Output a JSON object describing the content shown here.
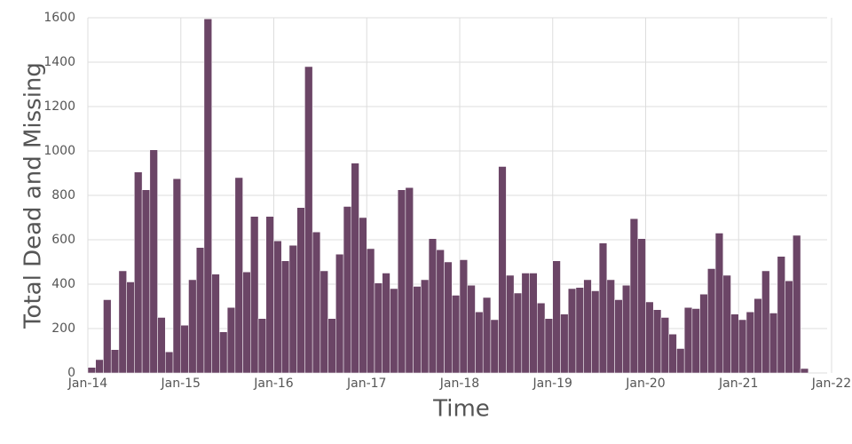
{
  "chart_data": {
    "type": "bar",
    "x_label": "Time",
    "y_label": "Total Dead and Missing",
    "color": "#6b4566",
    "grid": true,
    "x": [
      "2014-01",
      "2014-02",
      "2014-03",
      "2014-04",
      "2014-05",
      "2014-06",
      "2014-07",
      "2014-08",
      "2014-09",
      "2014-10",
      "2014-11",
      "2014-12",
      "2015-01",
      "2015-02",
      "2015-03",
      "2015-04",
      "2015-05",
      "2015-06",
      "2015-07",
      "2015-08",
      "2015-09",
      "2015-10",
      "2015-11",
      "2015-12",
      "2016-01",
      "2016-02",
      "2016-03",
      "2016-04",
      "2016-05",
      "2016-06",
      "2016-07",
      "2016-08",
      "2016-09",
      "2016-10",
      "2016-11",
      "2016-12",
      "2017-01",
      "2017-02",
      "2017-03",
      "2017-04",
      "2017-05",
      "2017-06",
      "2017-07",
      "2017-08",
      "2017-09",
      "2017-10",
      "2017-11",
      "2017-12",
      "2018-01",
      "2018-02",
      "2018-03",
      "2018-04",
      "2018-05",
      "2018-06",
      "2018-07",
      "2018-08",
      "2018-09",
      "2018-10",
      "2018-11",
      "2018-12",
      "2019-01",
      "2019-02",
      "2019-03",
      "2019-04",
      "2019-05",
      "2019-06",
      "2019-07",
      "2019-08",
      "2019-09",
      "2019-10",
      "2019-11",
      "2019-12",
      "2020-01",
      "2020-02",
      "2020-03",
      "2020-04",
      "2020-05",
      "2020-06",
      "2020-07",
      "2020-08",
      "2020-09",
      "2020-10",
      "2020-11",
      "2020-12",
      "2021-01",
      "2021-02",
      "2021-03",
      "2021-04",
      "2021-05",
      "2021-06",
      "2021-07",
      "2021-08",
      "2021-09"
    ],
    "values": [
      25,
      60,
      330,
      105,
      460,
      410,
      905,
      825,
      1005,
      250,
      95,
      875,
      215,
      420,
      565,
      1595,
      445,
      185,
      295,
      880,
      455,
      705,
      245,
      705,
      595,
      505,
      575,
      745,
      1380,
      635,
      460,
      245,
      535,
      750,
      945,
      700,
      560,
      405,
      450,
      380,
      825,
      835,
      390,
      420,
      605,
      555,
      500,
      350,
      510,
      395,
      275,
      340,
      240,
      930,
      440,
      360,
      450,
      450,
      315,
      245,
      505,
      265,
      380,
      385,
      420,
      370,
      585,
      420,
      330,
      395,
      695,
      605,
      320,
      285,
      250,
      175,
      110,
      295,
      290,
      355,
      470,
      630,
      440,
      265,
      240,
      275,
      335,
      460,
      270,
      525,
      415,
      620,
      20
    ],
    "xlim": [
      "2014-01",
      "2022-01"
    ],
    "xticks": [
      {
        "value": "2014-01",
        "label": "Jan-14"
      },
      {
        "value": "2015-01",
        "label": "Jan-15"
      },
      {
        "value": "2016-01",
        "label": "Jan-16"
      },
      {
        "value": "2017-01",
        "label": "Jan-17"
      },
      {
        "value": "2018-01",
        "label": "Jan-18"
      },
      {
        "value": "2019-01",
        "label": "Jan-19"
      },
      {
        "value": "2020-01",
        "label": "Jan-20"
      },
      {
        "value": "2021-01",
        "label": "Jan-21"
      },
      {
        "value": "2022-01",
        "label": "Jan-22"
      }
    ],
    "ylim": [
      0,
      1600
    ],
    "yticks": [
      0,
      200,
      400,
      600,
      800,
      1000,
      1200,
      1400,
      1600
    ]
  }
}
